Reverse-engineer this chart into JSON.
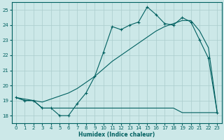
{
  "xlabel": "Humidex (Indice chaleur)",
  "bg_color": "#cce8e8",
  "grid_color": "#aacccc",
  "line_color": "#006060",
  "xlim": [
    -0.5,
    23.5
  ],
  "ylim": [
    17.5,
    25.5
  ],
  "yticks": [
    18,
    19,
    20,
    21,
    22,
    23,
    24,
    25
  ],
  "xticks": [
    0,
    1,
    2,
    3,
    4,
    5,
    6,
    7,
    8,
    9,
    10,
    11,
    12,
    13,
    14,
    15,
    16,
    17,
    18,
    19,
    20,
    21,
    22,
    23
  ],
  "series1_x": [
    0,
    1,
    2,
    3,
    4,
    5,
    6,
    7,
    8,
    9,
    10,
    11,
    12,
    13,
    14,
    15,
    16,
    17,
    18,
    19,
    20,
    21,
    22,
    23
  ],
  "series1_y": [
    19.2,
    19.0,
    19.0,
    18.5,
    18.5,
    18.0,
    18.0,
    18.8,
    19.5,
    20.6,
    22.2,
    23.9,
    23.7,
    24.0,
    24.2,
    25.2,
    24.7,
    24.1,
    24.0,
    24.5,
    24.2,
    23.0,
    21.8,
    18.2
  ],
  "series2_x": [
    0,
    1,
    2,
    3,
    4,
    5,
    6,
    7,
    8,
    9,
    10,
    11,
    12,
    13,
    14,
    15,
    16,
    17,
    18,
    19,
    20,
    21,
    22,
    23
  ],
  "series2_y": [
    19.2,
    19.0,
    19.0,
    18.5,
    18.5,
    18.5,
    18.5,
    18.5,
    18.5,
    18.5,
    18.5,
    18.5,
    18.5,
    18.5,
    18.5,
    18.5,
    18.5,
    18.5,
    18.5,
    18.2,
    18.2,
    18.2,
    18.2,
    18.2
  ],
  "series3_x": [
    0,
    1,
    2,
    3,
    4,
    5,
    6,
    7,
    8,
    9,
    10,
    11,
    12,
    13,
    14,
    15,
    16,
    17,
    18,
    19,
    20,
    21,
    22,
    23
  ],
  "series3_y": [
    19.2,
    19.1,
    19.0,
    18.9,
    19.1,
    19.3,
    19.5,
    19.8,
    20.2,
    20.6,
    21.1,
    21.6,
    22.0,
    22.4,
    22.8,
    23.2,
    23.6,
    23.9,
    24.1,
    24.3,
    24.3,
    23.6,
    22.5,
    18.2
  ]
}
